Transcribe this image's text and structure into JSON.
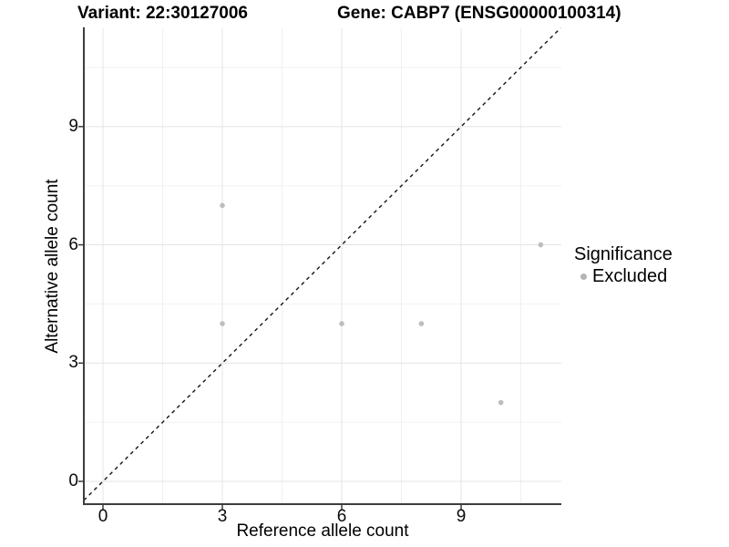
{
  "chart_data": {
    "type": "scatter",
    "title_left": "Variant: 22:30127006",
    "title_right": "Gene: CABP7 (ENSG00000100314)",
    "xlabel": "Reference allele count",
    "ylabel": "Alternative allele count",
    "xlim": [
      -0.48,
      11.56
    ],
    "ylim": [
      -0.58,
      11.5
    ],
    "x_ticks": [
      0,
      3,
      6,
      9
    ],
    "y_ticks": [
      0,
      3,
      6,
      9
    ],
    "x_minor_ticks": [
      1.5,
      4.5,
      7.5,
      10.5
    ],
    "y_minor_ticks": [
      1.5,
      4.5,
      7.5,
      10.5
    ],
    "grid": "major+minor",
    "series": [
      {
        "name": "Excluded",
        "color": "#bdbdbd",
        "points": [
          [
            3,
            7
          ],
          [
            3,
            4
          ],
          [
            6,
            4
          ],
          [
            8,
            4
          ],
          [
            10,
            2
          ],
          [
            11,
            6
          ]
        ]
      }
    ],
    "reference_line": {
      "kind": "identity",
      "style": "dashed",
      "color": "#141414"
    },
    "legend": {
      "title": "Significance",
      "position": "right",
      "entries": [
        {
          "label": "Excluded",
          "color": "#b5b5b5"
        }
      ]
    },
    "colors": {
      "grid_major": "#e4e4e4",
      "grid_minor": "#f0f0f0",
      "axis_line": "#3d3d3d",
      "tick_mark": "#3d3d3d"
    }
  }
}
